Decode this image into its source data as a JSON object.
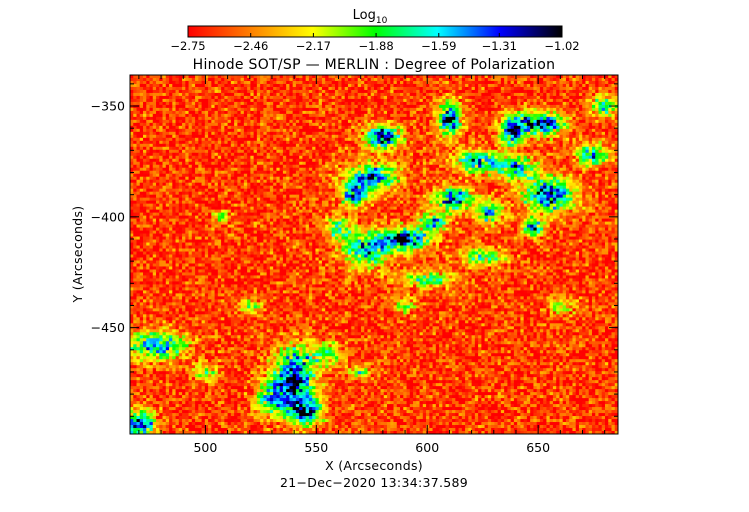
{
  "chart_data": {
    "type": "heatmap",
    "title": "Hinode SOT/SP — MERLIN : Degree of Polarization",
    "xlabel": "X (Arcseconds)",
    "ylabel": "Y (Arcseconds)",
    "timestamp": "21−Dec−2020 13:34:37.589",
    "xlim": [
      466,
      686
    ],
    "ylim": [
      -498,
      -336
    ],
    "x_ticks": [
      500,
      550,
      600,
      650
    ],
    "x_tick_labels": [
      "500",
      "550",
      "600",
      "650"
    ],
    "y_ticks": [
      -350,
      -400,
      -450
    ],
    "y_tick_labels": [
      "−350",
      "−400",
      "−450"
    ],
    "colorbar": {
      "label_base": "Log",
      "label_sub": "10",
      "range": [
        -2.75,
        -1.02
      ],
      "tick_values": [
        -2.75,
        -2.46,
        -2.17,
        -1.88,
        -1.59,
        -1.31,
        -1.02
      ],
      "tick_labels": [
        "−2.75",
        "−2.46",
        "−2.17",
        "−1.88",
        "−1.59",
        "−1.31",
        "−1.02"
      ],
      "colors": [
        "#ff0000",
        "#ff7f00",
        "#ffff00",
        "#00ff00",
        "#00ffff",
        "#0000ff",
        "#000000"
      ]
    },
    "field": {
      "background_level": -2.62,
      "grid_cols": 150,
      "grid_rows": 120,
      "noise_amplitude": 0.45,
      "blobs": [
        {
          "x": 580,
          "y": -364,
          "rx": 6,
          "ry": 4,
          "peak": 0.95
        },
        {
          "x": 575,
          "y": -382,
          "rx": 9,
          "ry": 5,
          "peak": 0.8
        },
        {
          "x": 567,
          "y": -390,
          "rx": 5,
          "ry": 4,
          "peak": 0.7
        },
        {
          "x": 610,
          "y": -356,
          "rx": 4,
          "ry": 6,
          "peak": 0.9
        },
        {
          "x": 622,
          "y": -375,
          "rx": 8,
          "ry": 4,
          "peak": 0.75
        },
        {
          "x": 612,
          "y": -392,
          "rx": 7,
          "ry": 4,
          "peak": 0.8
        },
        {
          "x": 603,
          "y": -402,
          "rx": 5,
          "ry": 3,
          "peak": 0.7
        },
        {
          "x": 590,
          "y": -410,
          "rx": 9,
          "ry": 4,
          "peak": 0.9
        },
        {
          "x": 573,
          "y": -415,
          "rx": 8,
          "ry": 6,
          "peak": 0.75
        },
        {
          "x": 560,
          "y": -405,
          "rx": 5,
          "ry": 4,
          "peak": 0.55
        },
        {
          "x": 650,
          "y": -358,
          "rx": 9,
          "ry": 4,
          "peak": 1.0
        },
        {
          "x": 638,
          "y": -362,
          "rx": 4,
          "ry": 5,
          "peak": 0.75
        },
        {
          "x": 655,
          "y": -390,
          "rx": 9,
          "ry": 6,
          "peak": 0.9
        },
        {
          "x": 640,
          "y": -378,
          "rx": 7,
          "ry": 4,
          "peak": 0.7
        },
        {
          "x": 628,
          "y": -398,
          "rx": 5,
          "ry": 4,
          "peak": 0.7
        },
        {
          "x": 648,
          "y": -405,
          "rx": 4,
          "ry": 3,
          "peak": 0.8
        },
        {
          "x": 625,
          "y": -418,
          "rx": 8,
          "ry": 3,
          "peak": 0.6
        },
        {
          "x": 600,
          "y": -428,
          "rx": 10,
          "ry": 3,
          "peak": 0.5
        },
        {
          "x": 675,
          "y": -372,
          "rx": 6,
          "ry": 4,
          "peak": 0.6
        },
        {
          "x": 680,
          "y": -350,
          "rx": 5,
          "ry": 4,
          "peak": 0.55
        },
        {
          "x": 540,
          "y": -472,
          "rx": 7,
          "ry": 10,
          "peak": 1.0
        },
        {
          "x": 545,
          "y": -488,
          "rx": 6,
          "ry": 5,
          "peak": 0.8
        },
        {
          "x": 530,
          "y": -482,
          "rx": 6,
          "ry": 6,
          "peak": 0.6
        },
        {
          "x": 555,
          "y": -462,
          "rx": 5,
          "ry": 4,
          "peak": 0.55
        },
        {
          "x": 478,
          "y": -458,
          "rx": 10,
          "ry": 5,
          "peak": 0.75
        },
        {
          "x": 470,
          "y": -494,
          "rx": 6,
          "ry": 5,
          "peak": 0.85
        },
        {
          "x": 500,
          "y": -470,
          "rx": 5,
          "ry": 3,
          "peak": 0.45
        },
        {
          "x": 507,
          "y": -400,
          "rx": 3,
          "ry": 2,
          "peak": 0.5
        },
        {
          "x": 570,
          "y": -470,
          "rx": 4,
          "ry": 2,
          "peak": 0.5
        },
        {
          "x": 590,
          "y": -440,
          "rx": 4,
          "ry": 3,
          "peak": 0.4
        },
        {
          "x": 660,
          "y": -440,
          "rx": 5,
          "ry": 3,
          "peak": 0.4
        },
        {
          "x": 520,
          "y": -440,
          "rx": 4,
          "ry": 3,
          "peak": 0.4
        }
      ]
    }
  }
}
